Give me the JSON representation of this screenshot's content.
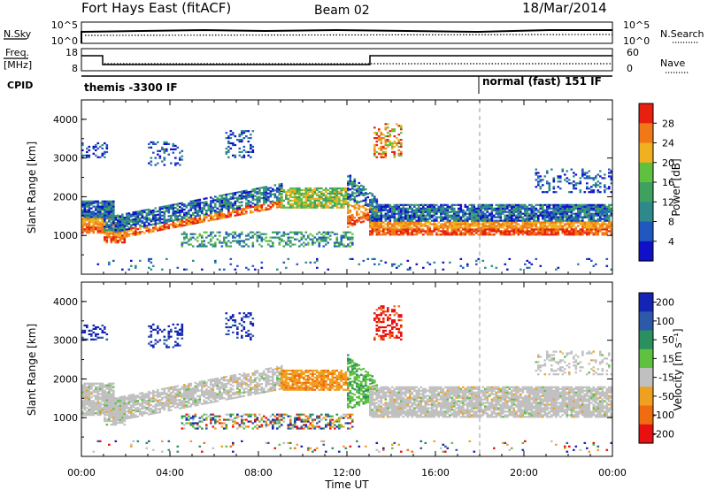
{
  "header": {
    "station": "Fort Hays East (fitACF)",
    "beam": "Beam 02",
    "date": "18/Mar/2014"
  },
  "ancillary": {
    "nsky_label": "N.Sky",
    "nsky_ticks": [
      "10^5",
      "10^0"
    ],
    "nsearch_label": "N.Search",
    "nsearch_ticks": [
      "10^5",
      "10^0"
    ],
    "freq_label_1": "Freq.",
    "freq_label_2": "[MHz]",
    "freq_ticks": [
      "18",
      "8"
    ],
    "nave_label": "Nave",
    "nave_ticks": [
      "60",
      "0"
    ],
    "cpid_label": "CPID",
    "cpid_segments": [
      {
        "text": "themis -3300 IF",
        "start_hour": 0
      },
      {
        "text": "normal (fast) 151 IF",
        "start_hour": 18
      }
    ]
  },
  "chart_data": [
    {
      "type": "heatmap",
      "name": "power",
      "ylabel": "Slant Range [km]",
      "ylim": [
        0,
        4500
      ],
      "yticks": [
        "1000",
        "2000",
        "3000",
        "4000"
      ],
      "xlim": [
        0,
        24
      ],
      "colorbar_label": "Power [dB]",
      "colorbar_ticks": [
        "4",
        "8",
        "12",
        "16",
        "20",
        "24",
        "28"
      ],
      "colors": [
        "#1010c8",
        "#2058c0",
        "#2e8a8a",
        "#40a060",
        "#60c040",
        "#f0b020",
        "#f07818",
        "#e82010"
      ]
    },
    {
      "type": "heatmap",
      "name": "velocity",
      "ylabel": "Slant Range [km]",
      "ylim": [
        0,
        4500
      ],
      "yticks": [
        "1000",
        "2000",
        "3000",
        "4000"
      ],
      "xlim": [
        0,
        24
      ],
      "colorbar_label": "Velocity [m s⁻¹]",
      "colorbar_ticks": [
        "200",
        "100",
        "50",
        "15",
        "-15",
        "-50",
        "-100",
        "-200"
      ],
      "colors": [
        "#1424b4",
        "#2c5aa8",
        "#2a9060",
        "#60c040",
        "#c0c0c0",
        "#f0a020",
        "#f06c10",
        "#e81010"
      ]
    }
  ],
  "xaxis": {
    "label": "Time UT",
    "ticks": [
      "00:00",
      "04:00",
      "08:00",
      "12:00",
      "16:00",
      "20:00",
      "00:00"
    ]
  }
}
